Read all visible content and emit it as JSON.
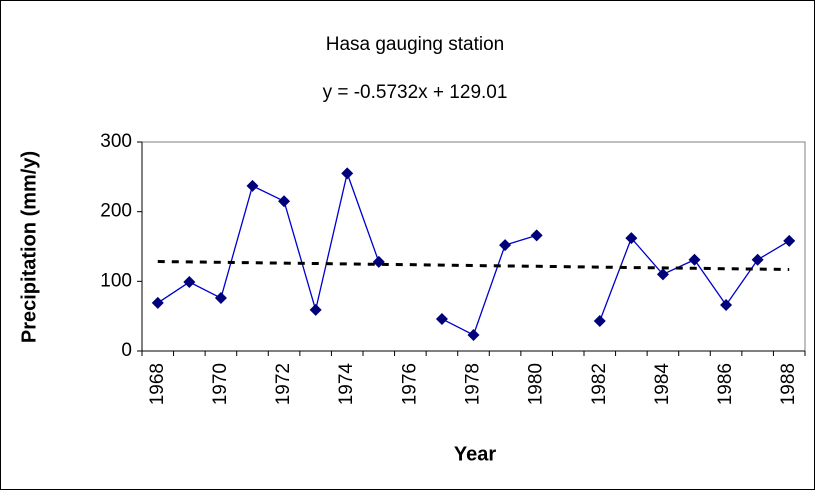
{
  "chart_data": {
    "type": "line",
    "title": "Hasa gauging station",
    "subtitle": "y = -0.5732x + 129.01",
    "x_label": "Year",
    "y_label": "Precipitation (mm/y)",
    "categories": [
      "1968",
      null,
      "1970",
      null,
      "1972",
      null,
      "1974",
      null,
      "1976",
      null,
      "1978",
      null,
      "1980",
      null,
      "1982",
      null,
      "1984",
      null,
      "1986",
      null,
      "1988"
    ],
    "series": [
      {
        "color": "#0000cc",
        "marker": "diamond",
        "marker_color": "#00007a",
        "values": [
          69,
          99,
          76,
          237,
          215,
          59,
          255,
          128,
          null,
          46,
          23,
          152,
          166,
          null,
          43,
          162,
          110,
          131,
          66,
          131,
          158
        ]
      },
      {
        "color": "#000000",
        "dash": true,
        "values": [
          128.4,
          127.9,
          127.3,
          126.7,
          126.1,
          125.6,
          125.0,
          124.4,
          123.9,
          123.3,
          122.7,
          122.1,
          121.6,
          121.0,
          120.4,
          119.8,
          119.3,
          118.7,
          118.1,
          117.6,
          117.0
        ]
      }
    ],
    "ylim": [
      0,
      300
    ],
    "yticks": [
      0,
      100,
      200,
      300
    ],
    "grid": false
  }
}
